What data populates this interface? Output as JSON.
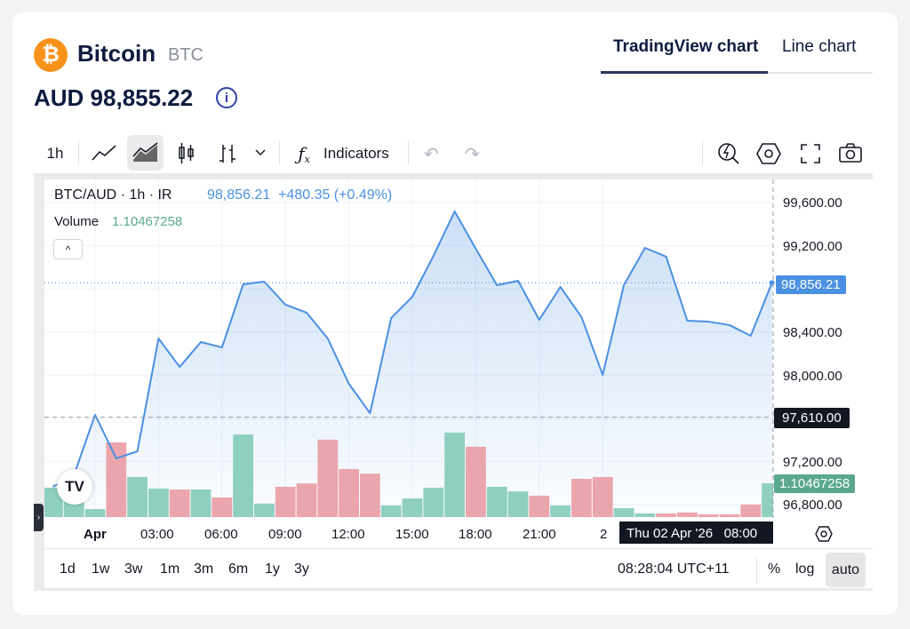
{
  "header": {
    "logo_glyph": "₿",
    "coin_name": "Bitcoin",
    "coin_symbol": "BTC",
    "price": "AUD 98,855.22",
    "info_glyph": "i"
  },
  "tabs": [
    {
      "label": "TradingView chart",
      "active": true
    },
    {
      "label": "Line chart",
      "active": false
    }
  ],
  "toolbar": {
    "interval": "1h",
    "indicators": "Indicators",
    "icons": [
      "line-chart-icon",
      "area-chart-icon",
      "candles-icon",
      "bars-icon",
      "chevron-down-icon",
      "function-icon",
      "undo-icon",
      "redo-icon",
      "quick-search-icon",
      "settings-icon",
      "fullscreen-icon",
      "camera-icon"
    ]
  },
  "legend": {
    "symbol": "BTC/AUD · 1h · IR",
    "value": "98,856.21",
    "change": "+480.35 (+0.49%)",
    "volume_label": "Volume",
    "volume_value": "1.10467258",
    "collapse_glyph": "^"
  },
  "price_axis": {
    "ticks": [
      "99,600.00",
      "99,200.00",
      "98,400.00",
      "98,000.00",
      "97,200.00",
      "96,800.00"
    ],
    "last_price_label": "98,856.21",
    "crosshair_label": "97,610.00",
    "volume_label": "1.10467258"
  },
  "time_axis": {
    "ticks": [
      "Apr",
      "03:00",
      "06:00",
      "09:00",
      "12:00",
      "15:00",
      "18:00",
      "21:00",
      "2"
    ],
    "crosshair_label": "Thu 02 Apr '26   08:00"
  },
  "bottom": {
    "ranges": [
      "1d",
      "1w",
      "3w",
      "1m",
      "3m",
      "6m",
      "1y",
      "3y"
    ],
    "clock": "08:28:04 UTC+11",
    "percent": "%",
    "log": "log",
    "auto": "auto"
  },
  "colors": {
    "line": "#4a90e2",
    "up": "#8fcfbf",
    "down": "#eba5ad",
    "label_blue": "#4a90e2",
    "label_green": "#5aa88f"
  },
  "chart_data": {
    "type": "area",
    "title": "BTC/AUD · 1h · IR",
    "x_hours_from_apr_01": [
      -2,
      -1,
      0,
      1,
      2,
      3,
      4,
      5,
      6,
      7,
      8,
      9,
      10,
      11,
      12,
      13,
      14,
      15,
      16,
      17,
      18,
      19,
      20,
      21,
      22,
      23,
      24,
      25,
      26,
      27,
      28,
      29,
      30,
      31,
      32
    ],
    "price": [
      96965,
      97072,
      97632,
      97228,
      97294,
      98340,
      98076,
      98307,
      98257,
      98842,
      98867,
      98653,
      98579,
      98340,
      97920,
      97648,
      98530,
      98727,
      99106,
      99518,
      99172,
      98834,
      98875,
      98513,
      98818,
      98538,
      98002,
      98834,
      99180,
      99098,
      98505,
      98496,
      98464,
      98365,
      98856.21
    ],
    "volume": [
      0.96,
      0.73,
      0.26,
      2.44,
      1.31,
      0.93,
      0.9,
      0.9,
      0.64,
      2.7,
      0.44,
      0.99,
      1.1,
      2.53,
      1.57,
      1.42,
      0.38,
      0.61,
      0.96,
      2.76,
      2.3,
      0.99,
      0.84,
      0.7,
      0.38,
      1.25,
      1.31,
      0.29,
      0.12,
      0.12,
      0.15,
      0.09,
      0.09,
      0.41,
      1.10467258
    ],
    "volume_dir": [
      "up",
      "up",
      "up",
      "down",
      "up",
      "up",
      "down",
      "up",
      "down",
      "up",
      "up",
      "down",
      "down",
      "down",
      "down",
      "down",
      "up",
      "up",
      "up",
      "up",
      "down",
      "up",
      "up",
      "down",
      "up",
      "down",
      "down",
      "up",
      "up",
      "down",
      "down",
      "down",
      "down",
      "down",
      "up"
    ],
    "ylim": [
      96700,
      99750
    ],
    "crosshair_price": 97610
  }
}
